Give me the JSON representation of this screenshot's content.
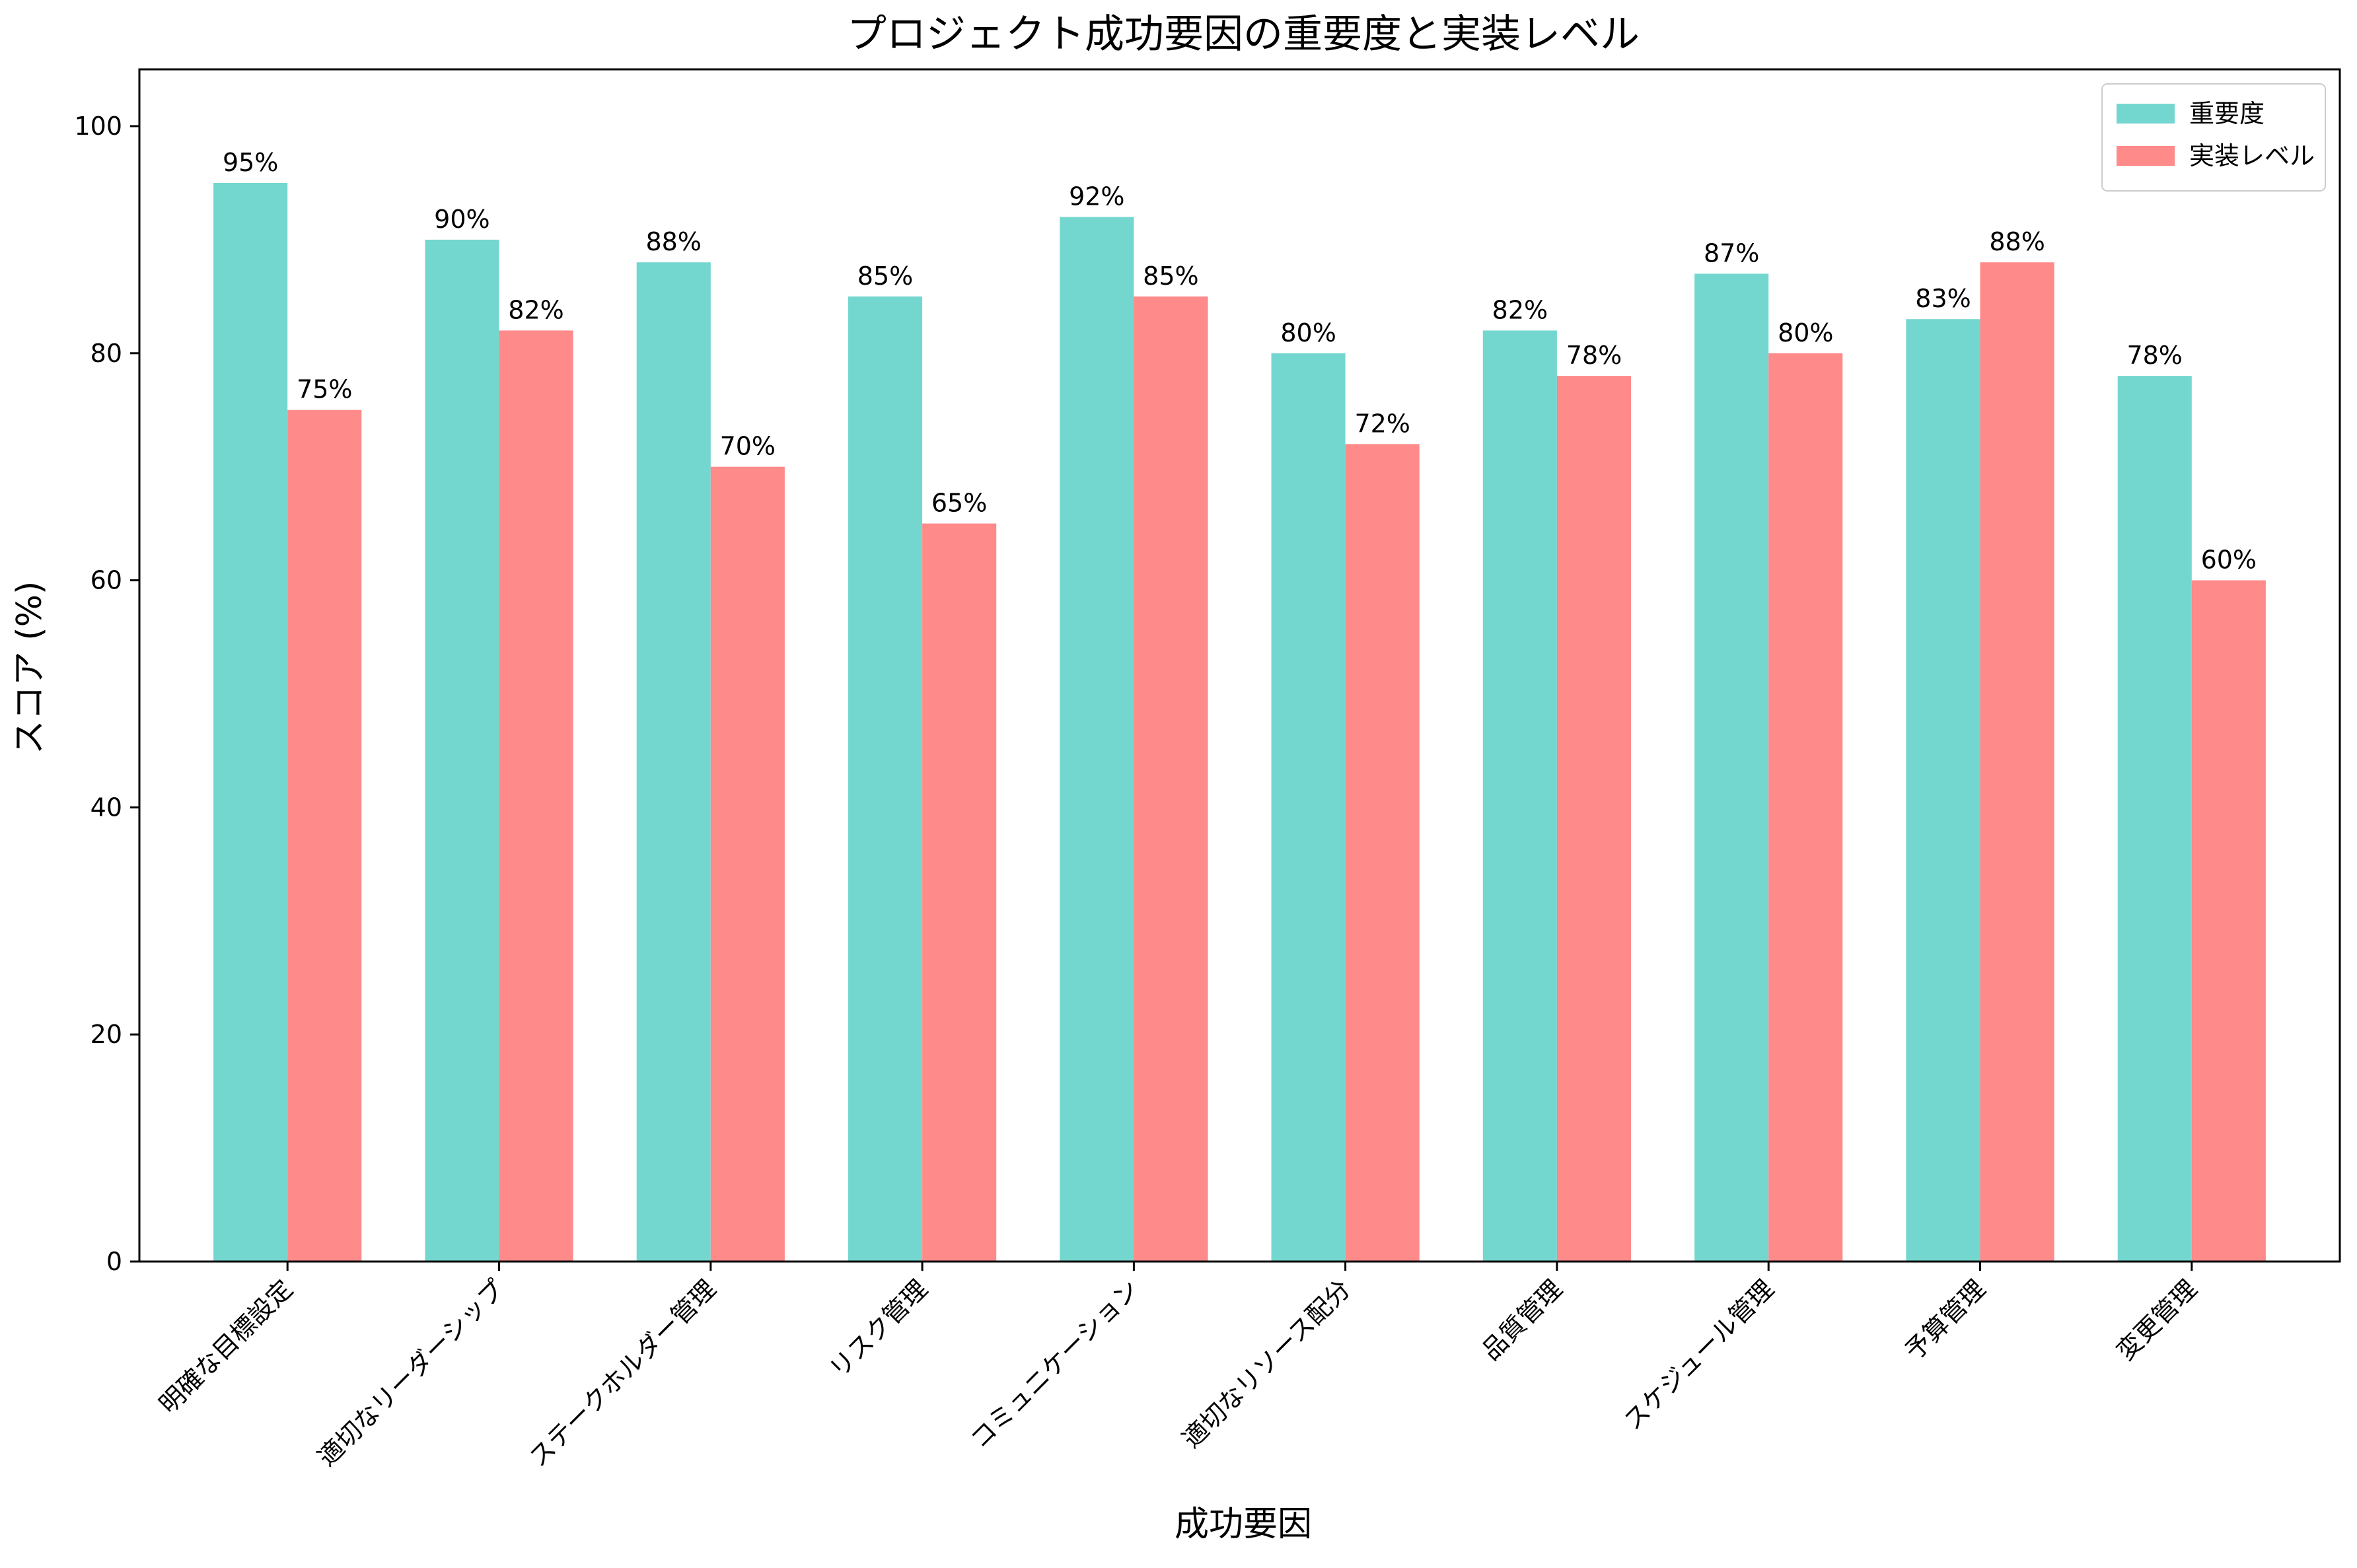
{
  "chart_data": {
    "type": "bar",
    "title": "プロジェクト成功要因の重要度と実装レベル",
    "xlabel": "成功要因",
    "ylabel": "スコア (%)",
    "ylim": [
      0,
      105
    ],
    "yticks": [
      0,
      20,
      40,
      60,
      80,
      100
    ],
    "grid": false,
    "legend_position": "top-right",
    "value_label_suffix": "%",
    "categories": [
      "明確な目標設定",
      "適切なリーダーシップ",
      "ステークホルダー管理",
      "リスク管理",
      "コミュニケーション",
      "適切なリソース配分",
      "品質管理",
      "スケジュール管理",
      "予算管理",
      "変更管理"
    ],
    "series": [
      {
        "name": "重要度",
        "color": "#74D7CF",
        "values": [
          95,
          90,
          88,
          85,
          92,
          80,
          82,
          87,
          83,
          78
        ]
      },
      {
        "name": "実装レベル",
        "color": "#FF8A8A",
        "values": [
          75,
          82,
          70,
          65,
          85,
          72,
          78,
          80,
          88,
          60
        ]
      }
    ]
  }
}
